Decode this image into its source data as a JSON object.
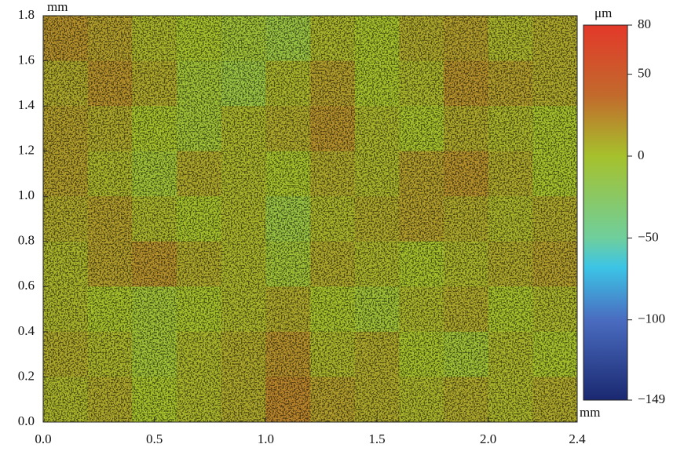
{
  "chart_data": {
    "type": "heatmap",
    "x_unit": "mm",
    "y_unit": "mm",
    "z_unit": "μm",
    "x": [
      0.1,
      0.3,
      0.5,
      0.7,
      0.9,
      1.1,
      1.3,
      1.5,
      1.7,
      1.9,
      2.1,
      2.3
    ],
    "y": [
      1.7,
      1.5,
      1.3,
      1.1,
      0.9,
      0.7,
      0.5,
      0.3,
      0.1
    ],
    "z": [
      [
        20,
        15,
        5,
        0,
        -5,
        -10,
        5,
        0,
        10,
        15,
        5,
        10
      ],
      [
        10,
        20,
        10,
        -5,
        -10,
        5,
        15,
        0,
        5,
        20,
        15,
        10
      ],
      [
        15,
        10,
        0,
        -5,
        5,
        10,
        20,
        5,
        0,
        10,
        5,
        0
      ],
      [
        15,
        5,
        -5,
        10,
        5,
        0,
        10,
        5,
        15,
        20,
        10,
        0
      ],
      [
        10,
        15,
        5,
        0,
        5,
        -10,
        5,
        10,
        15,
        10,
        5,
        10
      ],
      [
        5,
        15,
        20,
        10,
        5,
        -5,
        10,
        5,
        0,
        5,
        10,
        15
      ],
      [
        5,
        0,
        -5,
        0,
        5,
        10,
        0,
        -5,
        5,
        10,
        0,
        5
      ],
      [
        10,
        5,
        -5,
        5,
        10,
        20,
        5,
        10,
        0,
        -5,
        5,
        0
      ],
      [
        5,
        10,
        0,
        5,
        10,
        25,
        15,
        10,
        5,
        10,
        5,
        10
      ]
    ],
    "xlim": [
      0,
      2.4
    ],
    "ylim": [
      0,
      1.8
    ],
    "zlim": [
      -149,
      80
    ],
    "xticks": [
      {
        "value": 0,
        "label": "0.0"
      },
      {
        "value": 0.5,
        "label": "0.5"
      },
      {
        "value": 1,
        "label": "1.0"
      },
      {
        "value": 1.5,
        "label": "1.5"
      },
      {
        "value": 2,
        "label": "2.0"
      },
      {
        "value": 2.4,
        "label": "2.4"
      }
    ],
    "yticks": [
      {
        "value": 0,
        "label": "0.0"
      },
      {
        "value": 0.2,
        "label": "0.2"
      },
      {
        "value": 0.4,
        "label": "0.4"
      },
      {
        "value": 0.6,
        "label": "0.6"
      },
      {
        "value": 0.8,
        "label": "0.8"
      },
      {
        "value": 1,
        "label": "1.0"
      },
      {
        "value": 1.2,
        "label": "1.2"
      },
      {
        "value": 1.4,
        "label": "1.4"
      },
      {
        "value": 1.6,
        "label": "1.6"
      },
      {
        "value": 1.8,
        "label": "1.8"
      }
    ],
    "zticks": [
      80,
      50,
      0,
      {
        "value": -50,
        "label": "−50"
      },
      {
        "value": -100,
        "label": "−100"
      },
      {
        "value": -149,
        "label": "−149"
      }
    ],
    "colormap": [
      {
        "value": 80,
        "color": "#e3392a"
      },
      {
        "value": 37,
        "color": "#c26a2c"
      },
      {
        "value": 0,
        "color": "#a6c12c"
      },
      {
        "value": -50,
        "color": "#6fcf9c"
      },
      {
        "value": -68,
        "color": "#3cc4e6"
      },
      {
        "value": -100,
        "color": "#4a6cc0"
      },
      {
        "value": -149,
        "color": "#1a2870"
      }
    ]
  }
}
